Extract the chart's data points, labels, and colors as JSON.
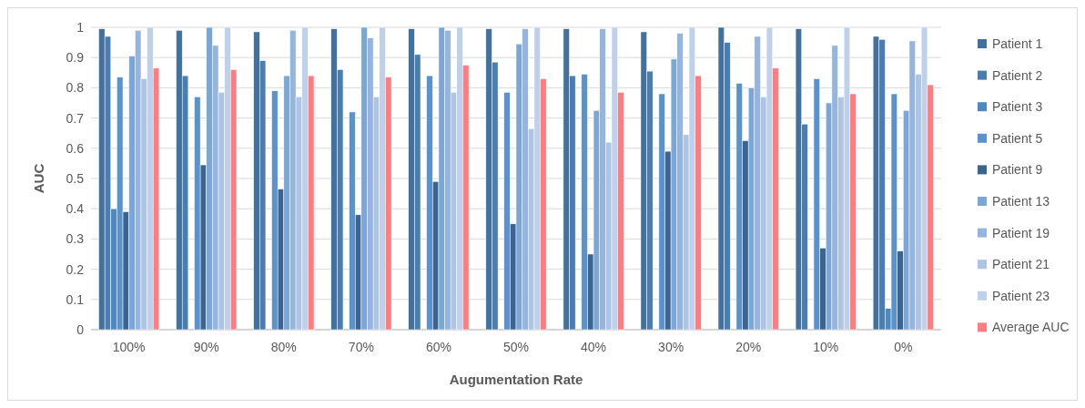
{
  "chart_data": {
    "type": "bar",
    "xlabel": "Augumentation Rate",
    "ylabel": "AUC",
    "categories": [
      "100%",
      "90%",
      "80%",
      "70%",
      "60%",
      "50%",
      "40%",
      "30%",
      "20%",
      "10%",
      "0%"
    ],
    "series": [
      {
        "name": "Patient 1",
        "color": "#41719c",
        "values": [
          0.995,
          0.99,
          0.985,
          0.995,
          0.995,
          0.995,
          0.995,
          0.985,
          1.0,
          0.995,
          0.97
        ]
      },
      {
        "name": "Patient 2",
        "color": "#4a7eb0",
        "values": [
          0.97,
          0.84,
          0.89,
          0.86,
          0.91,
          0.885,
          0.84,
          0.855,
          0.95,
          0.68,
          0.96
        ]
      },
      {
        "name": "Patient 3",
        "color": "#5088c0",
        "values": [
          0.4,
          0,
          0,
          0,
          0,
          0,
          0,
          0,
          0,
          0,
          0.07
        ]
      },
      {
        "name": "Patient 5",
        "color": "#5a93cb",
        "values": [
          0.835,
          0.77,
          0.79,
          0.72,
          0.84,
          0.785,
          0.845,
          0.78,
          0.815,
          0.83,
          0.78
        ]
      },
      {
        "name": "Patient 9",
        "color": "#3b6590",
        "values": [
          0.39,
          0.545,
          0.465,
          0.38,
          0.49,
          0.35,
          0.25,
          0.59,
          0.625,
          0.27,
          0.26
        ]
      },
      {
        "name": "Patient 13",
        "color": "#7aa7d8",
        "values": [
          0.905,
          1.0,
          0.84,
          1.0,
          1.0,
          0.945,
          0.725,
          0.895,
          0.8,
          0.75,
          0.725
        ]
      },
      {
        "name": "Patient 19",
        "color": "#95b5de",
        "values": [
          0.99,
          0.94,
          0.99,
          0.965,
          0.99,
          0.995,
          0.995,
          0.98,
          0.97,
          0.94,
          0.955
        ]
      },
      {
        "name": "Patient 21",
        "color": "#aec4e5",
        "values": [
          0.83,
          0.785,
          0.77,
          0.77,
          0.785,
          0.665,
          0.62,
          0.645,
          0.77,
          0.77,
          0.845
        ]
      },
      {
        "name": "Patient 23",
        "color": "#bed0ea",
        "values": [
          1.0,
          1.0,
          1.0,
          1.0,
          1.0,
          1.0,
          1.0,
          1.0,
          1.0,
          1.0,
          1.0
        ]
      },
      {
        "name": "Average AUC",
        "color": "#ff7c80",
        "values": [
          0.865,
          0.86,
          0.84,
          0.835,
          0.875,
          0.83,
          0.785,
          0.84,
          0.865,
          0.78,
          0.81
        ]
      }
    ],
    "ylim": [
      0,
      1
    ],
    "yticks": [
      0,
      0.1,
      0.2,
      0.3,
      0.4,
      0.5,
      0.6,
      0.7,
      0.8,
      0.9,
      1
    ],
    "grid": "y",
    "legend": "right"
  }
}
